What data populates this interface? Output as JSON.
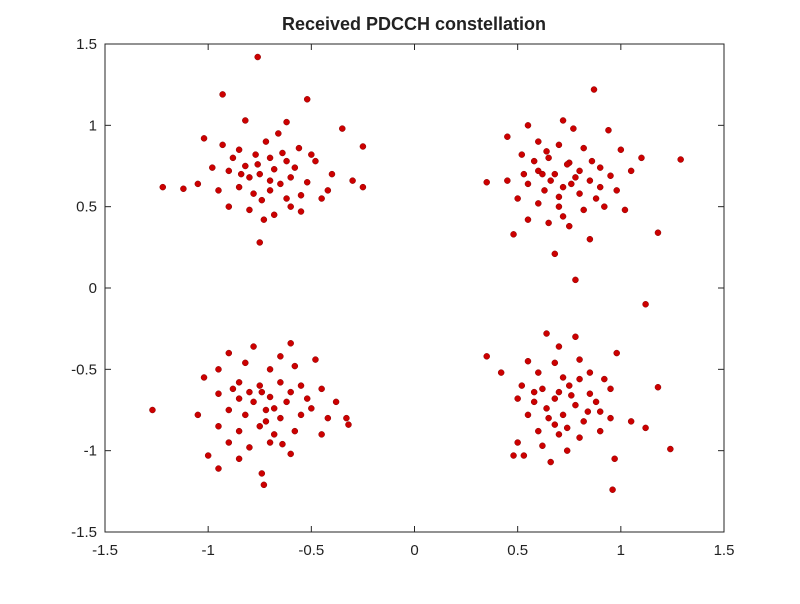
{
  "chart_data": {
    "type": "scatter",
    "title": "Received PDCCH constellation",
    "xlabel": "",
    "ylabel": "",
    "xlim": [
      -1.5,
      1.5
    ],
    "ylim": [
      -1.5,
      1.5
    ],
    "grid": false,
    "legend": "none",
    "x_ticks": [
      "-1.5",
      "-1",
      "-0.5",
      "0",
      "0.5",
      "1",
      "1.5"
    ],
    "y_ticks": [
      "1.5",
      "1",
      "0.5",
      "0",
      "-0.5",
      "-1",
      "-1.5"
    ],
    "marker_color": "#cc0000",
    "series": [
      {
        "points": [
          [
            -0.76,
            1.42
          ],
          [
            -0.93,
            1.19
          ],
          [
            -0.52,
            1.16
          ],
          [
            -0.82,
            1.03
          ],
          [
            -0.62,
            1.02
          ],
          [
            -0.35,
            0.98
          ],
          [
            -1.02,
            0.92
          ],
          [
            -0.93,
            0.88
          ],
          [
            -0.85,
            0.85
          ],
          [
            -0.77,
            0.82
          ],
          [
            -0.7,
            0.8
          ],
          [
            -0.64,
            0.83
          ],
          [
            -0.56,
            0.86
          ],
          [
            -0.48,
            0.78
          ],
          [
            -0.25,
            0.87
          ],
          [
            -0.98,
            0.74
          ],
          [
            -0.9,
            0.72
          ],
          [
            -0.82,
            0.75
          ],
          [
            -0.75,
            0.7
          ],
          [
            -0.68,
            0.73
          ],
          [
            -0.6,
            0.68
          ],
          [
            -0.52,
            0.65
          ],
          [
            -0.4,
            0.7
          ],
          [
            -0.3,
            0.66
          ],
          [
            -1.05,
            0.64
          ],
          [
            -1.22,
            0.62
          ],
          [
            -1.12,
            0.61
          ],
          [
            -0.95,
            0.6
          ],
          [
            -0.85,
            0.62
          ],
          [
            -0.78,
            0.58
          ],
          [
            -0.7,
            0.6
          ],
          [
            -0.62,
            0.55
          ],
          [
            -0.55,
            0.57
          ],
          [
            -0.45,
            0.55
          ],
          [
            -0.25,
            0.62
          ],
          [
            -0.9,
            0.5
          ],
          [
            -0.8,
            0.48
          ],
          [
            -0.68,
            0.45
          ],
          [
            -0.55,
            0.47
          ],
          [
            -0.73,
            0.42
          ],
          [
            -0.6,
            0.5
          ],
          [
            -0.75,
            0.28
          ],
          [
            -0.66,
            0.95
          ],
          [
            -0.72,
            0.9
          ],
          [
            -0.58,
            0.74
          ],
          [
            -0.8,
            0.68
          ],
          [
            -0.88,
            0.8
          ],
          [
            -0.5,
            0.82
          ],
          [
            -0.65,
            0.64
          ],
          [
            -0.42,
            0.6
          ],
          [
            -0.76,
            0.76
          ],
          [
            -0.7,
            0.66
          ],
          [
            -0.84,
            0.7
          ],
          [
            -0.62,
            0.78
          ],
          [
            -0.74,
            0.54
          ]
        ]
      },
      {
        "points": [
          [
            0.87,
            1.22
          ],
          [
            0.72,
            1.03
          ],
          [
            0.55,
            1.0
          ],
          [
            0.77,
            0.98
          ],
          [
            0.94,
            0.97
          ],
          [
            0.45,
            0.93
          ],
          [
            0.6,
            0.9
          ],
          [
            0.7,
            0.88
          ],
          [
            0.82,
            0.86
          ],
          [
            1.0,
            0.85
          ],
          [
            0.52,
            0.82
          ],
          [
            0.65,
            0.8
          ],
          [
            0.75,
            0.77
          ],
          [
            0.9,
            0.74
          ],
          [
            1.1,
            0.8
          ],
          [
            1.29,
            0.79
          ],
          [
            0.6,
            0.72
          ],
          [
            0.68,
            0.7
          ],
          [
            0.78,
            0.68
          ],
          [
            0.85,
            0.66
          ],
          [
            0.95,
            0.69
          ],
          [
            1.05,
            0.72
          ],
          [
            0.35,
            0.65
          ],
          [
            0.45,
            0.66
          ],
          [
            0.55,
            0.64
          ],
          [
            0.63,
            0.6
          ],
          [
            0.72,
            0.62
          ],
          [
            0.8,
            0.58
          ],
          [
            0.88,
            0.55
          ],
          [
            0.98,
            0.6
          ],
          [
            0.5,
            0.55
          ],
          [
            0.6,
            0.52
          ],
          [
            0.7,
            0.5
          ],
          [
            0.82,
            0.48
          ],
          [
            0.92,
            0.5
          ],
          [
            1.02,
            0.48
          ],
          [
            0.55,
            0.42
          ],
          [
            0.65,
            0.4
          ],
          [
            0.75,
            0.38
          ],
          [
            0.48,
            0.33
          ],
          [
            0.85,
            0.3
          ],
          [
            1.18,
            0.34
          ],
          [
            0.68,
            0.21
          ],
          [
            0.74,
            0.76
          ],
          [
            0.66,
            0.66
          ],
          [
            0.58,
            0.78
          ],
          [
            0.8,
            0.72
          ],
          [
            0.7,
            0.56
          ],
          [
            0.62,
            0.7
          ],
          [
            0.76,
            0.64
          ],
          [
            0.86,
            0.78
          ],
          [
            0.53,
            0.7
          ],
          [
            0.9,
            0.62
          ],
          [
            0.72,
            0.44
          ],
          [
            0.64,
            0.84
          ]
        ]
      },
      {
        "points": [
          [
            -0.6,
            -0.34
          ],
          [
            -0.78,
            -0.36
          ],
          [
            -0.9,
            -0.4
          ],
          [
            -0.65,
            -0.42
          ],
          [
            -0.48,
            -0.44
          ],
          [
            -0.82,
            -0.46
          ],
          [
            -0.7,
            -0.5
          ],
          [
            -0.58,
            -0.48
          ],
          [
            -0.95,
            -0.5
          ],
          [
            -1.02,
            -0.55
          ],
          [
            -0.85,
            -0.58
          ],
          [
            -0.75,
            -0.6
          ],
          [
            -0.65,
            -0.58
          ],
          [
            -0.55,
            -0.6
          ],
          [
            -0.45,
            -0.62
          ],
          [
            -0.95,
            -0.65
          ],
          [
            -0.85,
            -0.68
          ],
          [
            -0.78,
            -0.7
          ],
          [
            -0.7,
            -0.67
          ],
          [
            -0.62,
            -0.7
          ],
          [
            -0.52,
            -0.68
          ],
          [
            -0.38,
            -0.7
          ],
          [
            -0.9,
            -0.75
          ],
          [
            -0.82,
            -0.78
          ],
          [
            -0.72,
            -0.75
          ],
          [
            -0.65,
            -0.8
          ],
          [
            -0.55,
            -0.78
          ],
          [
            -0.42,
            -0.8
          ],
          [
            -1.27,
            -0.75
          ],
          [
            -1.05,
            -0.78
          ],
          [
            -0.95,
            -0.85
          ],
          [
            -0.85,
            -0.88
          ],
          [
            -0.75,
            -0.85
          ],
          [
            -0.68,
            -0.9
          ],
          [
            -0.58,
            -0.88
          ],
          [
            -0.33,
            -0.8
          ],
          [
            -0.32,
            -0.84
          ],
          [
            -0.45,
            -0.9
          ],
          [
            -0.9,
            -0.95
          ],
          [
            -0.8,
            -0.98
          ],
          [
            -0.7,
            -0.95
          ],
          [
            -0.6,
            -1.02
          ],
          [
            -1.0,
            -1.03
          ],
          [
            -0.95,
            -1.11
          ],
          [
            -0.85,
            -1.05
          ],
          [
            -0.74,
            -1.14
          ],
          [
            -0.73,
            -1.21
          ],
          [
            -0.74,
            -0.64
          ],
          [
            -0.68,
            -0.74
          ],
          [
            -0.8,
            -0.64
          ],
          [
            -0.6,
            -0.64
          ],
          [
            -0.72,
            -0.82
          ],
          [
            -0.88,
            -0.62
          ],
          [
            -0.5,
            -0.74
          ],
          [
            -0.64,
            -0.96
          ]
        ]
      },
      {
        "points": [
          [
            0.64,
            -0.28
          ],
          [
            0.78,
            -0.3
          ],
          [
            0.7,
            -0.36
          ],
          [
            0.35,
            -0.42
          ],
          [
            0.55,
            -0.45
          ],
          [
            0.68,
            -0.46
          ],
          [
            0.8,
            -0.44
          ],
          [
            0.98,
            -0.4
          ],
          [
            0.6,
            -0.52
          ],
          [
            0.72,
            -0.55
          ],
          [
            0.85,
            -0.52
          ],
          [
            0.92,
            -0.56
          ],
          [
            0.42,
            -0.52
          ],
          [
            0.52,
            -0.6
          ],
          [
            0.62,
            -0.62
          ],
          [
            0.75,
            -0.6
          ],
          [
            0.85,
            -0.65
          ],
          [
            0.95,
            -0.62
          ],
          [
            1.18,
            -0.61
          ],
          [
            0.5,
            -0.68
          ],
          [
            0.58,
            -0.7
          ],
          [
            0.68,
            -0.68
          ],
          [
            0.78,
            -0.72
          ],
          [
            0.88,
            -0.7
          ],
          [
            0.55,
            -0.78
          ],
          [
            0.65,
            -0.8
          ],
          [
            0.72,
            -0.78
          ],
          [
            0.82,
            -0.82
          ],
          [
            0.95,
            -0.8
          ],
          [
            1.05,
            -0.82
          ],
          [
            1.12,
            -0.86
          ],
          [
            0.6,
            -0.88
          ],
          [
            0.7,
            -0.9
          ],
          [
            0.8,
            -0.92
          ],
          [
            0.9,
            -0.88
          ],
          [
            0.5,
            -0.95
          ],
          [
            0.62,
            -0.97
          ],
          [
            0.74,
            -1.0
          ],
          [
            0.48,
            -1.03
          ],
          [
            0.53,
            -1.03
          ],
          [
            0.66,
            -1.07
          ],
          [
            0.97,
            -1.05
          ],
          [
            1.24,
            -0.99
          ],
          [
            0.96,
            -1.24
          ],
          [
            1.12,
            -0.1
          ],
          [
            0.78,
            0.05
          ],
          [
            0.7,
            -0.64
          ],
          [
            0.64,
            -0.74
          ],
          [
            0.76,
            -0.66
          ],
          [
            0.84,
            -0.76
          ],
          [
            0.58,
            -0.64
          ],
          [
            0.68,
            -0.84
          ],
          [
            0.9,
            -0.76
          ],
          [
            0.74,
            -0.86
          ],
          [
            0.8,
            -0.56
          ]
        ]
      }
    ]
  }
}
